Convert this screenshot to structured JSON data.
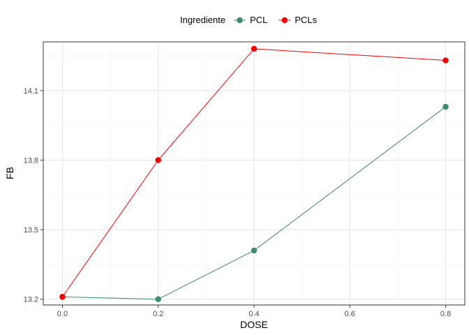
{
  "chart_data": {
    "type": "line",
    "xlabel": "DOSE",
    "ylabel": "FB",
    "xlim": [
      -0.04,
      0.84
    ],
    "ylim": [
      13.175,
      14.31
    ],
    "x_ticks": [
      0.0,
      0.2,
      0.4,
      0.6,
      0.8
    ],
    "x_tick_labels": [
      "0.0",
      "0.2",
      "0.4",
      "0.6",
      "0.8"
    ],
    "y_ticks": [
      13.2,
      13.5,
      13.8,
      14.1
    ],
    "y_tick_labels": [
      "13.2",
      "13.5",
      "13.8",
      "14.1"
    ],
    "grid": true,
    "legend": {
      "position": "top",
      "title": "Ingrediente"
    },
    "series": [
      {
        "name": "PCL",
        "color": "#3d8a6e",
        "x": [
          0.0,
          0.2,
          0.4,
          0.8
        ],
        "y": [
          13.21,
          13.2,
          13.41,
          14.03
        ]
      },
      {
        "name": "PCLs",
        "color": "#ee0000",
        "x": [
          0.0,
          0.2,
          0.4,
          0.8
        ],
        "y": [
          13.21,
          13.8,
          14.28,
          14.23
        ]
      }
    ]
  }
}
